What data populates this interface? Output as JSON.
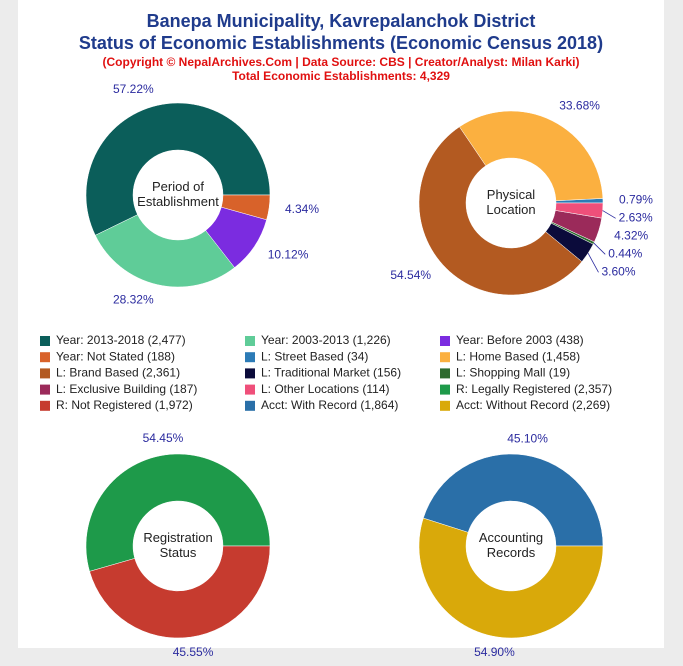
{
  "header": {
    "title_lines": [
      "Banepa Municipality, Kavrepalanchok District",
      "Status of Economic Establishments (Economic Census 2018)"
    ],
    "credit": "(Copyright © NepalArchives.Com | Data Source: CBS | Creator/Analyst: Milan Karki)",
    "total": "Total Economic Establishments: 4,329"
  },
  "chart_data": [
    {
      "type": "pie",
      "center_label": [
        "Period of",
        "Establishment"
      ],
      "categories": [
        "Year: 2013-2018 (2,477)",
        "Year: 2003-2013 (1,226)",
        "Year: Before 2003 (438)",
        "Year: Not Stated (188)"
      ],
      "values": [
        57.22,
        28.32,
        10.12,
        4.34
      ],
      "value_labels": [
        "57.22%",
        "28.32%",
        "10.12%",
        "4.34%"
      ],
      "colors": [
        "#0b5e5a",
        "#5fcc98",
        "#7b2ce0",
        "#d8622a"
      ]
    },
    {
      "type": "pie",
      "center_label": [
        "Physical",
        "Location"
      ],
      "categories": [
        "L: Street Based (34)",
        "L: Home Based (1,458)",
        "L: Brand Based (2,361)",
        "L: Traditional Market (156)",
        "L: Shopping Mall (19)",
        "L: Exclusive Building (187)",
        "L: Other Locations (114)"
      ],
      "values": [
        0.79,
        33.68,
        54.54,
        3.6,
        0.44,
        4.32,
        2.63
      ],
      "value_labels": [
        "0.79%",
        "33.68%",
        "54.54%",
        "3.60%",
        "0.44%",
        "4.32%",
        "2.63%"
      ],
      "colors": [
        "#2c7bb6",
        "#fbb040",
        "#b35a21",
        "#0b0b3b",
        "#2e6b2e",
        "#9b2a5a",
        "#ef4f7a"
      ]
    },
    {
      "type": "pie",
      "center_label": [
        "Registration",
        "Status"
      ],
      "categories": [
        "R: Legally Registered (2,357)",
        "R: Not Registered (1,972)"
      ],
      "values": [
        54.45,
        45.55
      ],
      "value_labels": [
        "54.45%",
        "45.55%"
      ],
      "colors": [
        "#1e9a4a",
        "#c63b2f"
      ]
    },
    {
      "type": "pie",
      "center_label": [
        "Accounting",
        "Records"
      ],
      "categories": [
        "Acct: With Record (1,864)",
        "Acct: Without Record (2,269)"
      ],
      "values": [
        45.1,
        54.9
      ],
      "value_labels": [
        "45.10%",
        "54.90%"
      ],
      "colors": [
        "#2a6fa8",
        "#d9a90a"
      ]
    }
  ]
}
